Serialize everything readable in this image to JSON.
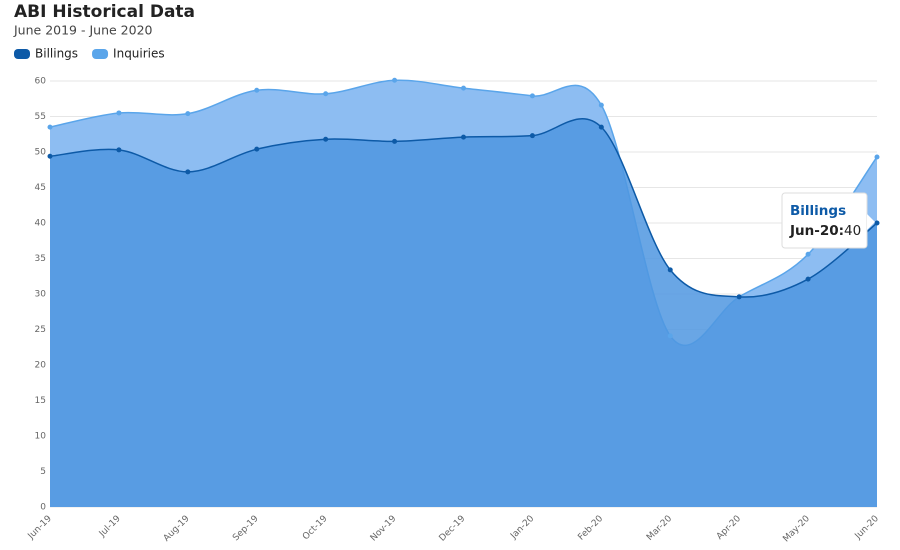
{
  "chart_data": {
    "type": "area",
    "title": "ABI Historical Data",
    "subtitle": "June 2019 - June 2020",
    "categories": [
      "Jun-19",
      "Jul-19",
      "Aug-19",
      "Sep-19",
      "Oct-19",
      "Nov-19",
      "Dec-19",
      "Jan-20",
      "Feb-20",
      "Mar-20",
      "Apr-20",
      "May-20",
      "Jun-20"
    ],
    "series": [
      {
        "name": "Billings",
        "color": "#0d5aa7",
        "fill": "#4f97e0",
        "values": [
          49.4,
          50.3,
          47.2,
          50.4,
          51.8,
          51.5,
          52.1,
          52.3,
          53.5,
          33.4,
          29.6,
          32.1,
          40
        ]
      },
      {
        "name": "Inquiries",
        "color": "#5aa5ea",
        "fill": "#8dbdf2",
        "values": [
          53.5,
          55.5,
          55.4,
          58.7,
          58.2,
          60.1,
          59.0,
          57.9,
          56.6,
          24.1,
          29.6,
          35.6,
          49.3
        ]
      }
    ],
    "ylim": [
      0,
      60
    ],
    "yticks": [
      0,
      5,
      10,
      15,
      20,
      25,
      30,
      35,
      40,
      45,
      50,
      55,
      60
    ],
    "grid": true,
    "legend": "top-left",
    "tooltip": {
      "label": "Jun-20:"
    }
  }
}
